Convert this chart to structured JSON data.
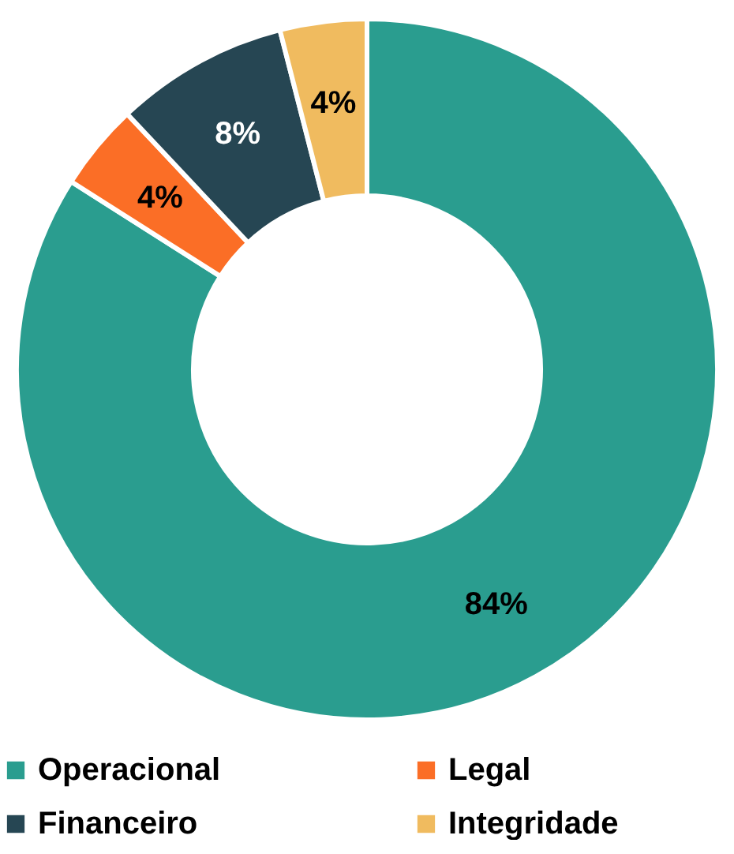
{
  "chart_data": {
    "type": "donut",
    "categories": [
      "Operacional",
      "Legal",
      "Financeiro",
      "Integridade"
    ],
    "values": [
      84,
      4,
      8,
      4
    ],
    "colors": [
      "#2a9d8f",
      "#fb6e26",
      "#264653",
      "#f0bb5f"
    ],
    "value_labels": [
      "84%",
      "4%",
      "8%",
      "4%"
    ],
    "legend": "bottom"
  }
}
